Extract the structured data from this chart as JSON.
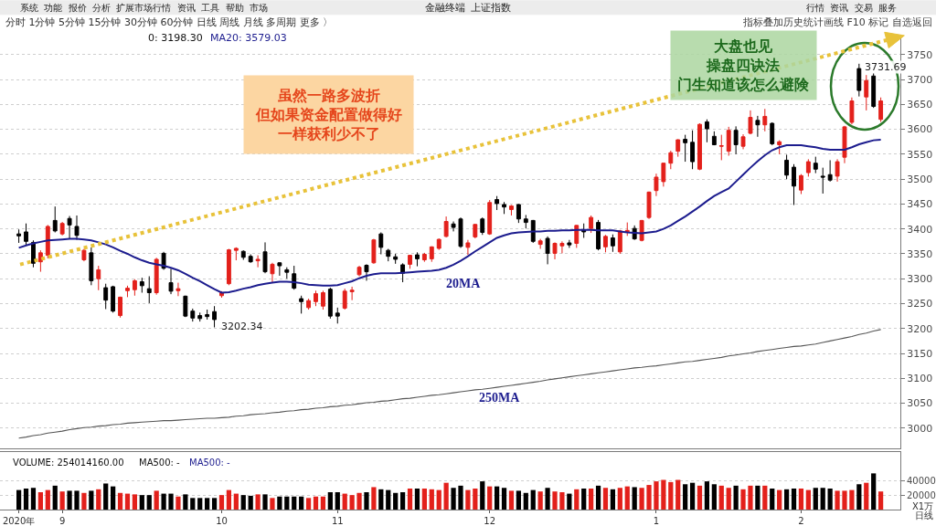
{
  "chart_data": [
    {
      "type": "candlestick",
      "title": "金融终端  上证指数",
      "categories": [
        null,
        null,
        null,
        null,
        null,
        null,
        null,
        null,
        null,
        null,
        null,
        null,
        null,
        null,
        null,
        null,
        null,
        null,
        null,
        null,
        null,
        null,
        null,
        null,
        null,
        null,
        null,
        null,
        null,
        null,
        null,
        null,
        null,
        null,
        null,
        null,
        null,
        null,
        null,
        null,
        null,
        null,
        null,
        null,
        null,
        null,
        null,
        null,
        null,
        null,
        null,
        null,
        null,
        null,
        null,
        null,
        null,
        null,
        null,
        null,
        null,
        null,
        null,
        null,
        null,
        null,
        null,
        null,
        null,
        null,
        null,
        null,
        null,
        null,
        null,
        null,
        null,
        null,
        null,
        null,
        null,
        null,
        null,
        null,
        null,
        null,
        null,
        null,
        null,
        null,
        null,
        null,
        null,
        null,
        null,
        null,
        null,
        null,
        null,
        null,
        null,
        null,
        null,
        null,
        null,
        null,
        null,
        null,
        null,
        null,
        null,
        null,
        null,
        null,
        null,
        null,
        null,
        null,
        null,
        null
      ],
      "ohlc": [
        [
          3390,
          3399,
          3372,
          3386
        ],
        [
          3394,
          3411,
          3366,
          3375
        ],
        [
          3373,
          3377,
          3323,
          3331
        ],
        [
          3334,
          3357,
          3314,
          3352
        ],
        [
          3347,
          3408,
          3341,
          3405
        ],
        [
          3417,
          3445,
          3393,
          3396
        ],
        [
          3390,
          3414,
          3387,
          3411
        ],
        [
          3421,
          3426,
          3381,
          3408
        ],
        [
          3405,
          3427,
          3378,
          3387
        ],
        [
          3338,
          3360,
          3335,
          3357
        ],
        [
          3352,
          3363,
          3287,
          3296
        ],
        [
          3300,
          3326,
          3277,
          3318
        ],
        [
          3282,
          3290,
          3239,
          3257
        ],
        [
          3284,
          3286,
          3232,
          3235
        ],
        [
          3226,
          3264,
          3222,
          3263
        ],
        [
          3276,
          3286,
          3263,
          3281
        ],
        [
          3278,
          3299,
          3266,
          3296
        ],
        [
          3294,
          3302,
          3272,
          3286
        ],
        [
          3280,
          3305,
          3251,
          3272
        ],
        [
          3272,
          3342,
          3268,
          3339
        ],
        [
          3351,
          3354,
          3318,
          3321
        ],
        [
          3292,
          3320,
          3269,
          3275
        ],
        [
          3276,
          3292,
          3265,
          3280
        ],
        [
          3265,
          3266,
          3223,
          3225
        ],
        [
          3235,
          3240,
          3214,
          3221
        ],
        [
          3226,
          3232,
          3214,
          3220
        ],
        [
          3228,
          3238,
          3218,
          3224
        ],
        [
          3234,
          3245,
          3202.34,
          3218
        ],
        [
          3266,
          3275,
          3262,
          3272
        ],
        [
          3290,
          3360,
          3287,
          3358
        ],
        [
          3357,
          3363,
          3337,
          3361
        ],
        [
          3355,
          3357,
          3338,
          3343
        ],
        [
          3345,
          3349,
          3332,
          3334
        ],
        [
          3336,
          3347,
          3323,
          3339
        ],
        [
          3354,
          3373,
          3311,
          3314
        ],
        [
          3310,
          3332,
          3293,
          3329
        ],
        [
          3332,
          3333,
          3306,
          3326
        ],
        [
          3318,
          3323,
          3300,
          3313
        ],
        [
          3310,
          3326,
          3278,
          3281
        ],
        [
          3260,
          3266,
          3230,
          3254
        ],
        [
          3242,
          3260,
          3238,
          3256
        ],
        [
          3254,
          3276,
          3245,
          3270
        ],
        [
          3245,
          3276,
          3238,
          3272
        ],
        [
          3279,
          3282,
          3220,
          3225
        ],
        [
          3231,
          3242,
          3210,
          3225
        ],
        [
          3241,
          3280,
          3238,
          3275
        ],
        [
          3274,
          3284,
          3257,
          3277
        ],
        [
          3308,
          3326,
          3305,
          3323
        ],
        [
          3327,
          3329,
          3296,
          3314
        ],
        [
          3332,
          3380,
          3330,
          3378
        ],
        [
          3390,
          3393,
          3349,
          3363
        ],
        [
          3357,
          3360,
          3335,
          3345
        ],
        [
          3344,
          3350,
          3330,
          3339
        ],
        [
          3328,
          3331,
          3293,
          3311
        ],
        [
          3329,
          3348,
          3320,
          3347
        ],
        [
          3348,
          3353,
          3325,
          3340
        ],
        [
          3338,
          3352,
          3334,
          3349
        ],
        [
          3340,
          3365,
          3334,
          3364
        ],
        [
          3361,
          3381,
          3358,
          3379
        ],
        [
          3385,
          3425,
          3383,
          3415
        ],
        [
          3410,
          3415,
          3395,
          3403
        ],
        [
          3420,
          3423,
          3362,
          3365
        ],
        [
          3363,
          3378,
          3348,
          3372
        ],
        [
          3384,
          3410,
          3381,
          3409
        ],
        [
          3420,
          3423,
          3388,
          3393
        ],
        [
          3390,
          3458,
          3388,
          3453
        ],
        [
          3459,
          3466,
          3438,
          3451
        ],
        [
          3449,
          3454,
          3430,
          3444
        ],
        [
          3439,
          3448,
          3427,
          3446
        ],
        [
          3449,
          3450,
          3412,
          3420
        ],
        [
          3420,
          3428,
          3401,
          3413
        ],
        [
          3417,
          3418,
          3372,
          3375
        ],
        [
          3369,
          3380,
          3360,
          3376
        ],
        [
          3381,
          3385,
          3329,
          3351
        ],
        [
          3351,
          3373,
          3339,
          3371
        ],
        [
          3366,
          3375,
          3351,
          3371
        ],
        [
          3372,
          3378,
          3362,
          3368
        ],
        [
          3371,
          3408,
          3362,
          3407
        ],
        [
          3398,
          3411,
          3382,
          3394
        ],
        [
          3401,
          3427,
          3392,
          3423
        ],
        [
          3413,
          3418,
          3357,
          3360
        ],
        [
          3364,
          3388,
          3353,
          3385
        ],
        [
          3382,
          3389,
          3354,
          3366
        ],
        [
          3354,
          3398,
          3350,
          3396
        ],
        [
          3394,
          3413,
          3386,
          3397
        ],
        [
          3401,
          3407,
          3378,
          3380
        ],
        [
          3377,
          3418,
          3375,
          3417
        ],
        [
          3423,
          3475,
          3420,
          3474
        ],
        [
          3477,
          3511,
          3466,
          3504
        ],
        [
          3495,
          3533,
          3485,
          3532
        ],
        [
          3532,
          3557,
          3520,
          3553
        ],
        [
          3556,
          3580,
          3545,
          3579
        ],
        [
          3580,
          3589,
          3535,
          3573
        ],
        [
          3574,
          3598,
          3520,
          3535
        ],
        [
          3520,
          3612,
          3518,
          3610
        ],
        [
          3615,
          3620,
          3574,
          3601
        ],
        [
          3586,
          3596,
          3568,
          3569
        ],
        [
          3566,
          3589,
          3538,
          3567
        ],
        [
          3556,
          3605,
          3547,
          3598
        ],
        [
          3598,
          3606,
          3550,
          3569
        ],
        [
          3566,
          3590,
          3560,
          3585
        ],
        [
          3592,
          3638,
          3590,
          3624
        ],
        [
          3618,
          3627,
          3585,
          3609
        ],
        [
          3609,
          3641,
          3596,
          3626
        ],
        [
          3612,
          3614,
          3568,
          3571
        ],
        [
          3569,
          3578,
          3550,
          3575
        ],
        [
          3538,
          3549,
          3500,
          3508
        ],
        [
          3524,
          3530,
          3448,
          3486
        ],
        [
          3478,
          3510,
          3470,
          3507
        ],
        [
          3513,
          3540,
          3505,
          3535
        ],
        [
          3532,
          3545,
          3512,
          3520
        ],
        [
          3506,
          3523,
          3471,
          3504
        ],
        [
          3509,
          3538,
          3495,
          3498
        ],
        [
          3506,
          3540,
          3495,
          3535
        ],
        [
          3544,
          3607,
          3532,
          3605
        ],
        [
          3614,
          3664,
          3610,
          3657
        ],
        [
          3722,
          3731.69,
          3666,
          3678
        ],
        [
          3665,
          3709,
          3638,
          3698
        ],
        [
          3707,
          3713,
          3643,
          3646
        ],
        [
          3620,
          3664,
          3615,
          3657
        ]
      ],
      "colors": [
        "#000000",
        "#000000",
        "#000000",
        "#e3201b",
        "#e3201b",
        "#000000",
        "#e3201b",
        "#000000",
        "#000000",
        "#e3201b",
        "#000000",
        "#e3201b",
        "#000000",
        "#000000",
        "#e3201b",
        "#e3201b",
        "#e3201b",
        "#000000",
        "#000000",
        "#e3201b",
        "#000000",
        "#000000",
        "#e3201b",
        "#000000",
        "#000000",
        "#000000",
        "#000000",
        "#000000",
        "#e3201b",
        "#e3201b",
        "#e3201b",
        "#000000",
        "#000000",
        "#e3201b",
        "#000000",
        "#e3201b",
        "#000000",
        "#000000",
        "#000000",
        "#000000",
        "#e3201b",
        "#e3201b",
        "#e3201b",
        "#000000",
        "#000000",
        "#e3201b",
        "#e3201b",
        "#e3201b",
        "#000000",
        "#e3201b",
        "#000000",
        "#000000",
        "#000000",
        "#000000",
        "#e3201b",
        "#000000",
        "#e3201b",
        "#e3201b",
        "#e3201b",
        "#e3201b",
        "#000000",
        "#000000",
        "#e3201b",
        "#e3201b",
        "#000000",
        "#e3201b",
        "#000000",
        "#000000",
        "#e3201b",
        "#000000",
        "#000000",
        "#000000",
        "#e3201b",
        "#000000",
        "#e3201b",
        "#e3201b",
        "#000000",
        "#e3201b",
        "#000000",
        "#e3201b",
        "#000000",
        "#e3201b",
        "#000000",
        "#e3201b",
        "#e3201b",
        "#000000",
        "#e3201b",
        "#e3201b",
        "#e3201b",
        "#e3201b",
        "#e3201b",
        "#e3201b",
        "#000000",
        "#000000",
        "#e3201b",
        "#000000",
        "#000000",
        "#e3201b",
        "#e3201b",
        "#000000",
        "#e3201b",
        "#e3201b",
        "#000000",
        "#e3201b",
        "#000000",
        "#e3201b",
        "#000000",
        "#000000",
        "#e3201b",
        "#e3201b",
        "#000000",
        "#000000",
        "#000000",
        "#e3201b",
        "#e3201b",
        "#e3201b",
        "#000000",
        "#e3201b",
        "#000000",
        "#e3201b"
      ],
      "series": [
        {
          "name": "20MA",
          "type": "line",
          "color": "#1c1c8e",
          "values": [
            3362,
            3367,
            3371,
            3374,
            3377,
            3378,
            3379,
            3380,
            3380,
            3379,
            3377,
            3373,
            3369,
            3363,
            3356,
            3350,
            3343,
            3337,
            3332,
            3329,
            3326,
            3322,
            3317,
            3310,
            3302,
            3295,
            3287,
            3279,
            3272,
            3273,
            3276,
            3280,
            3283,
            3287,
            3290,
            3292,
            3294,
            3294,
            3293,
            3291,
            3288,
            3287,
            3286,
            3286,
            3287,
            3291,
            3295,
            3301,
            3306,
            3309,
            3311,
            3311,
            3311,
            3312,
            3313,
            3314,
            3315,
            3316,
            3318,
            3322,
            3328,
            3336,
            3345,
            3355,
            3364,
            3373,
            3382,
            3387,
            3391,
            3393,
            3394,
            3395,
            3395,
            3396,
            3396,
            3397,
            3397,
            3398,
            3398,
            3398,
            3397,
            3397,
            3397,
            3395,
            3393,
            3392,
            3391,
            3393,
            3395,
            3400,
            3407,
            3416,
            3425,
            3435,
            3445,
            3456,
            3466,
            3474,
            3481,
            3495,
            3509,
            3523,
            3536,
            3548,
            3558,
            3564,
            3568,
            3568,
            3568,
            3566,
            3564,
            3561,
            3559,
            3559,
            3559,
            3564,
            3570,
            3574,
            3578,
            3579
          ]
        },
        {
          "name": "250MA",
          "type": "line",
          "color": "#555555",
          "values": [
            2980,
            2982,
            2985,
            2987,
            2990,
            2992,
            2994,
            2997,
            2999,
            3001,
            3002,
            3004,
            3005,
            3007,
            3008,
            3010,
            3011,
            3012,
            3013,
            3014,
            3015,
            3015,
            3016,
            3017,
            3018,
            3019,
            3020,
            3020,
            3021,
            3022,
            3024,
            3025,
            3027,
            3028,
            3029,
            3031,
            3032,
            3034,
            3035,
            3037,
            3038,
            3040,
            3041,
            3043,
            3044,
            3046,
            3047,
            3049,
            3051,
            3052,
            3054,
            3055,
            3057,
            3059,
            3060,
            3062,
            3064,
            3066,
            3067,
            3069,
            3071,
            3073,
            3075,
            3077,
            3078,
            3080,
            3082,
            3084,
            3086,
            3088,
            3090,
            3092,
            3094,
            3097,
            3099,
            3101,
            3103,
            3105,
            3107,
            3109,
            3111,
            3113,
            3115,
            3117,
            3119,
            3121,
            3122,
            3124,
            3125,
            3127,
            3129,
            3131,
            3133,
            3134,
            3136,
            3138,
            3140,
            3142,
            3145,
            3147,
            3149,
            3151,
            3154,
            3156,
            3158,
            3160,
            3162,
            3164,
            3165,
            3167,
            3169,
            3172,
            3175,
            3178,
            3181,
            3184,
            3188,
            3191,
            3195,
            3198
          ]
        }
      ],
      "ylim": [
        2960,
        3790
      ],
      "yticks": [
        3000,
        3050,
        3100,
        3150,
        3200,
        3250,
        3300,
        3350,
        3400,
        3450,
        3500,
        3550,
        3600,
        3650,
        3700,
        3750
      ],
      "grid": "y",
      "annotations": [
        "系统  功能  报价  分析  扩展市场行情  资讯  工具  帮助  市场",
        "分时 1分钟 5分钟 15分钟 30分钟 60分钟 日线 周线 月线 多周期 更多 〉",
        "行情  资讯  交易  服务",
        "指标叠加历史统计画线 F10 标记 自选返回",
        "0: 3198.30",
        "MA20: 3579.03",
        "虽然一路多波折但如果资金配置做得好一样获利少不了",
        "大盘也见操盘四诀法门生知道该怎么避険",
        "3731.69",
        "3202.34"
      ]
    },
    {
      "type": "bar",
      "categories": [
        "2020年",
        null,
        null,
        null,
        null,
        null,
        "9",
        null,
        null,
        null,
        null,
        null,
        null,
        null,
        null,
        null,
        null,
        null,
        null,
        null,
        null,
        null,
        null,
        null,
        null,
        null,
        null,
        null,
        "10",
        null,
        null,
        null,
        null,
        null,
        null,
        null,
        null,
        null,
        null,
        null,
        null,
        null,
        null,
        null,
        "11",
        null,
        null,
        null,
        null,
        null,
        null,
        null,
        null,
        null,
        null,
        null,
        null,
        null,
        null,
        null,
        null,
        null,
        null,
        null,
        null,
        "12",
        null,
        null,
        null,
        null,
        null,
        null,
        null,
        null,
        null,
        null,
        null,
        null,
        null,
        null,
        null,
        null,
        null,
        null,
        null,
        null,
        null,
        null,
        "1",
        null,
        null,
        null,
        null,
        null,
        null,
        null,
        null,
        null,
        null,
        null,
        null,
        null,
        null,
        null,
        null,
        null,
        null,
        null,
        "2",
        null,
        null,
        null,
        null,
        null,
        null,
        null,
        null,
        null,
        null,
        null
      ],
      "values": [
        27000,
        29000,
        30000,
        24000,
        27000,
        33000,
        25000,
        26000,
        26000,
        23000,
        26000,
        28000,
        36000,
        32000,
        23000,
        22000,
        21000,
        20000,
        20000,
        26000,
        22000,
        22000,
        18000,
        21000,
        16000,
        16000,
        16000,
        16000,
        20000,
        27000,
        22000,
        20000,
        19000,
        21000,
        21000,
        16000,
        18000,
        18000,
        18000,
        18000,
        16000,
        18000,
        18000,
        24000,
        24000,
        22000,
        20000,
        23000,
        24000,
        31000,
        28000,
        27000,
        23000,
        24000,
        29000,
        29000,
        29000,
        28000,
        27000,
        37000,
        30000,
        33000,
        27000,
        29000,
        39000,
        32000,
        32000,
        30000,
        26000,
        26000,
        23000,
        27000,
        25000,
        30000,
        25000,
        24000,
        22000,
        28000,
        29000,
        29000,
        33000,
        30000,
        28000,
        30000,
        32000,
        31000,
        30000,
        34000,
        39000,
        41000,
        38000,
        41000,
        35000,
        37000,
        33000,
        39000,
        35000,
        33000,
        30000,
        33000,
        28000,
        33000,
        33000,
        33000,
        29000,
        27000,
        28000,
        29000,
        29000,
        27000,
        30000,
        30000,
        29000,
        26000,
        26000,
        27000,
        35000,
        37000,
        50000,
        25000
      ],
      "colors": [
        "#000000",
        "#000000",
        "#000000",
        "#e3201b",
        "#e3201b",
        "#000000",
        "#e3201b",
        "#000000",
        "#000000",
        "#e3201b",
        "#000000",
        "#e3201b",
        "#000000",
        "#000000",
        "#e3201b",
        "#e3201b",
        "#e3201b",
        "#000000",
        "#000000",
        "#e3201b",
        "#000000",
        "#000000",
        "#e3201b",
        "#000000",
        "#000000",
        "#000000",
        "#000000",
        "#000000",
        "#e3201b",
        "#e3201b",
        "#e3201b",
        "#000000",
        "#000000",
        "#e3201b",
        "#000000",
        "#e3201b",
        "#000000",
        "#000000",
        "#000000",
        "#000000",
        "#e3201b",
        "#e3201b",
        "#e3201b",
        "#000000",
        "#000000",
        "#e3201b",
        "#e3201b",
        "#e3201b",
        "#000000",
        "#e3201b",
        "#000000",
        "#000000",
        "#000000",
        "#000000",
        "#e3201b",
        "#000000",
        "#e3201b",
        "#e3201b",
        "#e3201b",
        "#e3201b",
        "#000000",
        "#000000",
        "#e3201b",
        "#e3201b",
        "#000000",
        "#e3201b",
        "#000000",
        "#000000",
        "#e3201b",
        "#000000",
        "#000000",
        "#000000",
        "#e3201b",
        "#000000",
        "#e3201b",
        "#e3201b",
        "#000000",
        "#e3201b",
        "#000000",
        "#e3201b",
        "#000000",
        "#e3201b",
        "#000000",
        "#e3201b",
        "#e3201b",
        "#000000",
        "#e3201b",
        "#e3201b",
        "#e3201b",
        "#e3201b",
        "#e3201b",
        "#e3201b",
        "#000000",
        "#000000",
        "#e3201b",
        "#000000",
        "#000000",
        "#e3201b",
        "#e3201b",
        "#000000",
        "#e3201b",
        "#e3201b",
        "#000000",
        "#e3201b",
        "#000000",
        "#e3201b",
        "#000000",
        "#000000",
        "#e3201b",
        "#e3201b",
        "#000000",
        "#000000",
        "#000000",
        "#e3201b",
        "#e3201b",
        "#e3201b",
        "#000000",
        "#e3201b",
        "#000000",
        "#e3201b"
      ],
      "ylim": [
        0,
        80000
      ],
      "yticks": [
        20000,
        40000
      ],
      "grid": "y",
      "annotations": [
        "VOLUME: 254014160.00",
        "MA500: -",
        "MA500: -",
        "X1万",
        "日线"
      ]
    }
  ]
}
